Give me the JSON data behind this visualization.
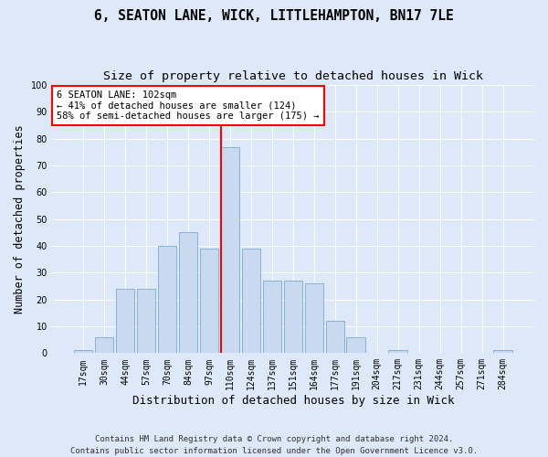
{
  "title1": "6, SEATON LANE, WICK, LITTLEHAMPTON, BN17 7LE",
  "title2": "Size of property relative to detached houses in Wick",
  "xlabel": "Distribution of detached houses by size in Wick",
  "ylabel": "Number of detached properties",
  "categories": [
    "17sqm",
    "30sqm",
    "44sqm",
    "57sqm",
    "70sqm",
    "84sqm",
    "97sqm",
    "110sqm",
    "124sqm",
    "137sqm",
    "151sqm",
    "164sqm",
    "177sqm",
    "191sqm",
    "204sqm",
    "217sqm",
    "231sqm",
    "244sqm",
    "257sqm",
    "271sqm",
    "284sqm"
  ],
  "values": [
    1,
    6,
    24,
    24,
    40,
    45,
    39,
    77,
    39,
    27,
    27,
    26,
    12,
    6,
    0,
    1,
    0,
    0,
    0,
    0,
    1
  ],
  "bar_color": "#c9d9f0",
  "bar_edgecolor": "#7baad4",
  "vline_color": "red",
  "vline_index": 7,
  "annotation_text": "6 SEATON LANE: 102sqm\n← 41% of detached houses are smaller (124)\n58% of semi-detached houses are larger (175) →",
  "annotation_box_facecolor": "white",
  "annotation_box_edgecolor": "red",
  "ylim": [
    0,
    100
  ],
  "yticks": [
    0,
    10,
    20,
    30,
    40,
    50,
    60,
    70,
    80,
    90,
    100
  ],
  "footnote": "Contains HM Land Registry data © Crown copyright and database right 2024.\nContains public sector information licensed under the Open Government Licence v3.0.",
  "background_color": "#dde8f8",
  "plot_background": "#dde8f8",
  "grid_color": "white",
  "title1_fontsize": 10.5,
  "title2_fontsize": 9.5,
  "xlabel_fontsize": 9,
  "ylabel_fontsize": 8.5,
  "tick_fontsize": 7,
  "annotation_fontsize": 7.5,
  "footnote_fontsize": 6.5
}
